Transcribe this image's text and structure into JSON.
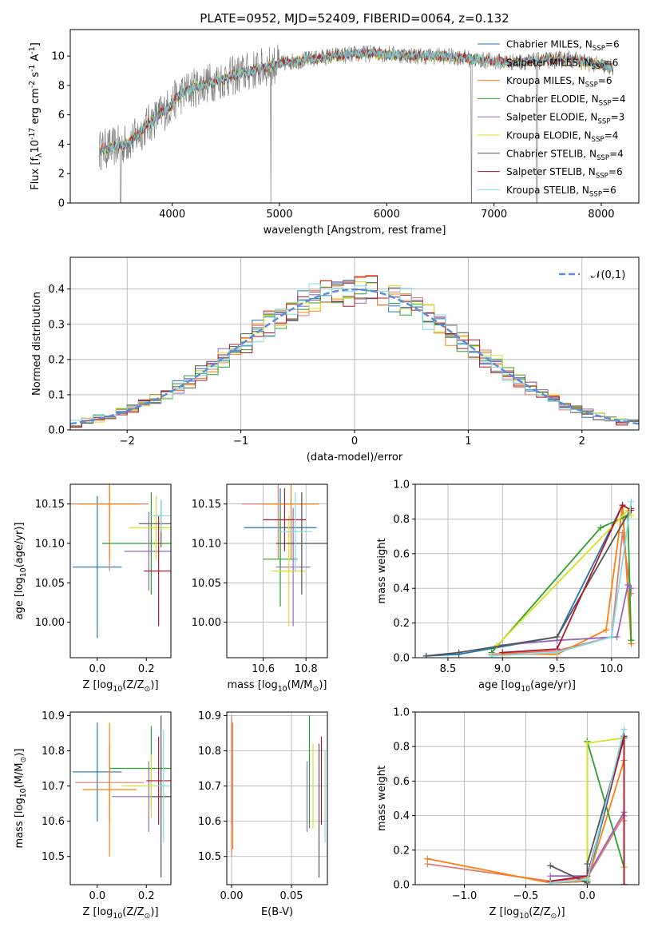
{
  "title": "PLATE=0952, MJD=52409, FIBERID=0064, z=0.132",
  "colors": [
    "#1f77b4",
    "#e07b6e",
    "#ff7f0e",
    "#2ca02c",
    "#9467bd",
    "#d9e021",
    "#555555",
    "#b2182b",
    "#7fdbe6"
  ],
  "chart_data": [
    {
      "type": "line",
      "id": "spectrum",
      "title": "PLATE=0952, MJD=52409, FIBERID=0064, z=0.132",
      "xlabel": "wavelength [Angstrom, rest frame]",
      "ylabel": "Flux [f$_\\lambda$10$^{-17}$ erg cm$^{-2}$ s$^{-1}$ A$^{-1}$]",
      "xlim": [
        3050,
        8350
      ],
      "ylim": [
        0,
        11.8
      ],
      "xticks": [
        4000,
        5000,
        6000,
        7000,
        8000
      ],
      "yticks": [
        0,
        2,
        4,
        6,
        8,
        10
      ],
      "continuum": {
        "x": [
          3320,
          3450,
          3550,
          3650,
          3750,
          3850,
          3950,
          4050,
          4150,
          4300,
          4500,
          4700,
          4900,
          5100,
          5300,
          5500,
          5700,
          5900,
          6100,
          6300,
          6500,
          6700,
          6900,
          7100,
          7300,
          7500,
          7700,
          7900,
          8110
        ],
        "y": [
          3.6,
          3.8,
          4.0,
          4.4,
          5.2,
          5.8,
          6.4,
          7.2,
          7.7,
          8.1,
          8.5,
          8.9,
          9.3,
          9.6,
          9.8,
          10.0,
          10.1,
          10.2,
          10.1,
          10.0,
          10.0,
          9.9,
          9.7,
          9.6,
          9.6,
          9.7,
          9.8,
          9.5,
          9.2
        ]
      },
      "legend_loc": "upper right",
      "series": [
        {
          "name": "Chabrier MILES, N$_{SSP}$=6"
        },
        {
          "name": "Salpeter MILES, N$_{SSP}$=6"
        },
        {
          "name": "Kroupa MILES, N$_{SSP}$=6"
        },
        {
          "name": "Chabrier ELODIE, N$_{SSP}$=4"
        },
        {
          "name": "Salpeter ELODIE, N$_{SSP}$=3"
        },
        {
          "name": "Kroupa ELODIE, N$_{SSP}$=4"
        },
        {
          "name": "Chabrier STELIB, N$_{SSP}$=4"
        },
        {
          "name": "Salpeter STELIB, N$_{SSP}$=6"
        },
        {
          "name": "Kroupa STELIB, N$_{SSP}$=6"
        }
      ]
    },
    {
      "type": "histogram",
      "id": "residuals",
      "xlabel": "(data-model)/error",
      "ylabel": "Normed distribution",
      "xlim": [
        -2.5,
        2.5
      ],
      "ylim": [
        0,
        0.49
      ],
      "xticks": [
        -2,
        -1,
        0,
        1,
        2
      ],
      "yticks": [
        0.0,
        0.1,
        0.2,
        0.3,
        0.4
      ],
      "bin_width": 0.1,
      "bin_start": -2.5,
      "base_curve": "gaussian",
      "grid": true,
      "legend": "$\\mathcal{N}(0,1)$",
      "legend_loc": "upper right"
    },
    {
      "type": "scatter",
      "id": "age_vs_Z",
      "xlabel": "Z [log$_{10}$(Z/Z$_\\odot$)]",
      "ylabel": "age  [log$_{10}$(age/yr)]",
      "xlim": [
        -0.11,
        0.3
      ],
      "ylim": [
        9.955,
        10.175
      ],
      "xticks": [
        0.0,
        0.2
      ],
      "yticks": [
        10.0,
        10.05,
        10.1,
        10.15
      ],
      "grid": false,
      "errorbars": [
        {
          "x": 0.0,
          "y": 10.07,
          "xerr": 0.1,
          "yerr": 0.09
        },
        {
          "x": 0.05,
          "y": 10.15,
          "xerr": 0.16,
          "yerr": 0.085
        },
        {
          "x": 0.05,
          "y": 10.15,
          "xerr": 0.12,
          "yerr": 0.07
        },
        {
          "x": 0.22,
          "y": 10.1,
          "xerr": 0.2,
          "yerr": 0.065
        },
        {
          "x": 0.21,
          "y": 10.09,
          "xerr": 0.1,
          "yerr": 0.05
        },
        {
          "x": 0.24,
          "y": 10.12,
          "xerr": 0.11,
          "yerr": 0.04
        },
        {
          "x": 0.26,
          "y": 10.125,
          "xerr": 0.09,
          "yerr": 0.03
        },
        {
          "x": 0.25,
          "y": 10.065,
          "xerr": 0.06,
          "yerr": 0.07
        },
        {
          "x": 0.26,
          "y": 10.135,
          "xerr": 0.05,
          "yerr": 0.02
        }
      ]
    },
    {
      "type": "scatter",
      "id": "age_vs_mass",
      "xlabel": "mass [log$_{10}$(M/M$_\\odot$)]",
      "ylabel": "",
      "xlim": [
        10.43,
        10.9
      ],
      "ylim": [
        9.955,
        10.175
      ],
      "xticks": [
        10.6,
        10.8
      ],
      "yticks": [
        10.0,
        10.05,
        10.1,
        10.15
      ],
      "grid": true,
      "errorbars": [
        {
          "x": 10.68,
          "y": 10.12,
          "xerr": 0.17,
          "yerr": 0.05
        },
        {
          "x": 10.67,
          "y": 10.15,
          "xerr": 0.17,
          "yerr": 0.07
        },
        {
          "x": 10.73,
          "y": 10.15,
          "xerr": 0.13,
          "yerr": 0.07
        },
        {
          "x": 10.68,
          "y": 10.08,
          "xerr": 0.08,
          "yerr": 0.06
        },
        {
          "x": 10.74,
          "y": 10.07,
          "xerr": 0.08,
          "yerr": 0.075
        },
        {
          "x": 10.72,
          "y": 10.065,
          "xerr": 0.08,
          "yerr": 0.07
        },
        {
          "x": 10.78,
          "y": 10.1,
          "xerr": 0.12,
          "yerr": 0.065
        },
        {
          "x": 10.7,
          "y": 10.13,
          "xerr": 0.1,
          "yerr": 0.04
        },
        {
          "x": 10.75,
          "y": 10.115,
          "xerr": 0.08,
          "yerr": 0.05
        }
      ]
    },
    {
      "type": "line",
      "id": "mass_weight_vs_age",
      "xlabel": "age  [log$_{10}$(age/yr)]",
      "ylabel": "mass weight",
      "xlim": [
        8.2,
        10.25
      ],
      "ylim": [
        0,
        1.0
      ],
      "xticks": [
        8.5,
        9.0,
        9.5,
        10.0
      ],
      "yticks": [
        0.0,
        0.2,
        0.4,
        0.6,
        0.8,
        1.0
      ],
      "grid": true,
      "lines": [
        {
          "x": [
            8.3,
            8.6,
            9.5,
            10.1,
            10.18
          ],
          "y": [
            0.01,
            0.02,
            0.12,
            0.88,
            0.1
          ]
        },
        {
          "x": [
            8.9,
            9.5,
            10.0,
            10.1,
            10.18
          ],
          "y": [
            0.02,
            0.04,
            0.12,
            0.72,
            0.37
          ]
        },
        {
          "x": [
            9.0,
            9.5,
            9.95,
            10.1,
            10.18
          ],
          "y": [
            0.02,
            0.02,
            0.16,
            0.87,
            0.08
          ]
        },
        {
          "x": [
            8.9,
            9.9,
            10.15,
            10.18
          ],
          "y": [
            0.03,
            0.75,
            0.82,
            0.1
          ]
        },
        {
          "x": [
            8.95,
            9.5,
            10.05,
            10.15,
            10.18
          ],
          "y": [
            0.07,
            0.1,
            0.12,
            0.42,
            0.4
          ]
        },
        {
          "x": [
            8.95,
            10.15,
            10.18
          ],
          "y": [
            0.07,
            0.85,
            0.82
          ]
        },
        {
          "x": [
            8.3,
            8.6,
            9.5,
            10.18
          ],
          "y": [
            0.01,
            0.03,
            0.12,
            0.86
          ]
        },
        {
          "x": [
            9.0,
            9.5,
            10.1,
            10.18
          ],
          "y": [
            0.03,
            0.05,
            0.88,
            0.85
          ]
        },
        {
          "x": [
            8.9,
            9.5,
            10.0,
            10.18
          ],
          "y": [
            0.01,
            0.03,
            0.12,
            0.9
          ]
        }
      ]
    },
    {
      "type": "scatter",
      "id": "mass_vs_Z",
      "xlabel": "Z [log$_{10}$(Z/Z$_\\odot$)]",
      "ylabel": "mass [log$_{10}$(M/M$_\\odot$)]",
      "xlim": [
        -0.11,
        0.3
      ],
      "ylim": [
        10.42,
        10.91
      ],
      "xticks": [
        0.0,
        0.2
      ],
      "yticks": [
        10.5,
        10.6,
        10.7,
        10.8,
        10.9
      ],
      "grid": false,
      "errorbars": [
        {
          "x": 0.0,
          "y": 10.74,
          "xerr": 0.1,
          "yerr": 0.14
        },
        {
          "x": 0.05,
          "y": 10.71,
          "xerr": 0.14,
          "yerr": 0.11
        },
        {
          "x": 0.05,
          "y": 10.69,
          "xerr": 0.11,
          "yerr": 0.19
        },
        {
          "x": 0.22,
          "y": 10.75,
          "xerr": 0.17,
          "yerr": 0.12
        },
        {
          "x": 0.21,
          "y": 10.67,
          "xerr": 0.15,
          "yerr": 0.1
        },
        {
          "x": 0.22,
          "y": 10.7,
          "xerr": 0.12,
          "yerr": 0.09
        },
        {
          "x": 0.26,
          "y": 10.67,
          "xerr": 0.04,
          "yerr": 0.23
        },
        {
          "x": 0.25,
          "y": 10.715,
          "xerr": 0.05,
          "yerr": 0.125
        },
        {
          "x": 0.27,
          "y": 10.7,
          "xerr": 0.03,
          "yerr": 0.16
        }
      ]
    },
    {
      "type": "scatter",
      "id": "mass_vs_ebv",
      "xlabel": "E(B-V)",
      "ylabel": "",
      "xlim": [
        -0.004,
        0.08
      ],
      "ylim": [
        10.42,
        10.91
      ],
      "xticks": [
        0.0,
        0.05
      ],
      "yticks": [
        10.5,
        10.6,
        10.7,
        10.8,
        10.9
      ],
      "grid": true,
      "errorbars": [
        {
          "x": 0.0,
          "y": 10.74,
          "xerr": 0,
          "yerr": 0.15
        },
        {
          "x": 0.0,
          "y": 10.7,
          "xerr": 0,
          "yerr": 0.2
        },
        {
          "x": 0.001,
          "y": 10.7,
          "xerr": 0,
          "yerr": 0.18
        },
        {
          "x": 0.065,
          "y": 10.74,
          "xerr": 0,
          "yerr": 0.16
        },
        {
          "x": 0.063,
          "y": 10.67,
          "xerr": 0,
          "yerr": 0.1
        },
        {
          "x": 0.068,
          "y": 10.7,
          "xerr": 0,
          "yerr": 0.12
        },
        {
          "x": 0.073,
          "y": 10.63,
          "xerr": 0,
          "yerr": 0.19
        },
        {
          "x": 0.075,
          "y": 10.715,
          "xerr": 0,
          "yerr": 0.125
        },
        {
          "x": 0.078,
          "y": 10.67,
          "xerr": 0,
          "yerr": 0.13
        }
      ]
    },
    {
      "type": "line",
      "id": "mass_weight_vs_Z",
      "xlabel": "Z [log$_{10}$(Z/Z$_\\odot$)]",
      "ylabel": "mass weight",
      "xlim": [
        -1.4,
        0.42
      ],
      "ylim": [
        0,
        1.0
      ],
      "xticks": [
        -1.0,
        -0.5,
        0.0
      ],
      "yticks": [
        0.0,
        0.2,
        0.4,
        0.6,
        0.8,
        1.0
      ],
      "grid": true,
      "lines": [
        {
          "x": [
            -0.3,
            0.0,
            0.3,
            0.3
          ],
          "y": [
            0.01,
            0.02,
            0.86,
            0.1
          ]
        },
        {
          "x": [
            -1.3,
            -0.3,
            0.0,
            0.3,
            0.3
          ],
          "y": [
            0.12,
            0.02,
            0.04,
            0.4,
            0.37
          ]
        },
        {
          "x": [
            -1.3,
            -0.3,
            0.0,
            0.3,
            0.3
          ],
          "y": [
            0.15,
            0.01,
            0.02,
            0.72,
            0.0
          ]
        },
        {
          "x": [
            0.0,
            0.0,
            0.3,
            0.3
          ],
          "y": [
            0.02,
            0.83,
            0.1,
            0.1
          ]
        },
        {
          "x": [
            -0.3,
            0.0,
            0.3,
            0.3
          ],
          "y": [
            0.05,
            0.05,
            0.42,
            0.4
          ]
        },
        {
          "x": [
            0.0,
            0.0,
            0.3,
            0.3
          ],
          "y": [
            0.04,
            0.82,
            0.85,
            0.1
          ]
        },
        {
          "x": [
            -0.3,
            0.0,
            0.0,
            0.3,
            0.3
          ],
          "y": [
            0.11,
            0.01,
            0.12,
            0.86,
            0.0
          ]
        },
        {
          "x": [
            -0.3,
            0.0,
            0.3,
            0.3
          ],
          "y": [
            0.02,
            0.05,
            0.85,
            0.0
          ]
        },
        {
          "x": [
            -0.3,
            0.0,
            0.3
          ],
          "y": [
            0.01,
            0.03,
            0.9
          ]
        }
      ]
    }
  ]
}
